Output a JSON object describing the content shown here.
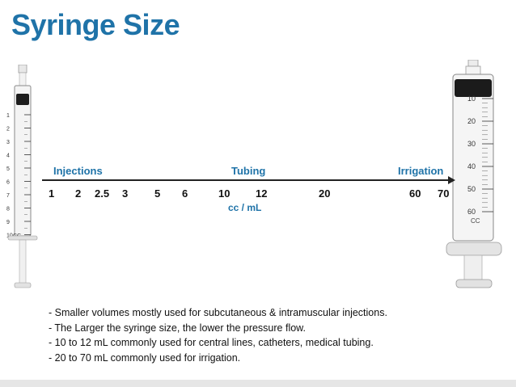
{
  "title": "Syringe Size",
  "colors": {
    "title": "#1f73a8",
    "accent": "#1f73a8"
  },
  "categories": [
    {
      "id": "injections",
      "label": "Injections"
    },
    {
      "id": "tubing",
      "label": "Tubing"
    },
    {
      "id": "irrigation",
      "label": "Irrigation"
    }
  ],
  "sizes": [
    "1",
    "2",
    "2.5",
    "3",
    "5",
    "6",
    "10",
    "12",
    "20",
    "60",
    "70"
  ],
  "unit": "cc / mL",
  "small_syringe": {
    "marks": [
      "1",
      "2",
      "3",
      "4",
      "5",
      "6",
      "7",
      "8",
      "9",
      "10"
    ],
    "unit": "CC"
  },
  "large_syringe": {
    "marks": [
      "10",
      "20",
      "30",
      "40",
      "50",
      "60"
    ],
    "unit": "CC"
  },
  "notes": [
    "- Smaller volumes mostly used for subcutaneous & intramuscular injections.",
    "- The Larger the syringe size, the lower the pressure flow.",
    "- 10 to 12 mL commonly used for central lines, catheters, medical tubing.",
    "- 20 to 70 mL commonly used for irrigation."
  ]
}
